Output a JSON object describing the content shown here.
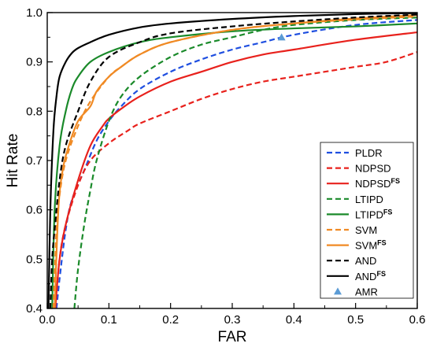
{
  "chart_data": {
    "type": "line",
    "title": "",
    "xlabel": "FAR",
    "ylabel": "Hit Rate",
    "xlim": [
      0.0,
      0.6
    ],
    "ylim": [
      0.4,
      1.0
    ],
    "x_ticks": [
      "0.0",
      "0.1",
      "0.2",
      "0.3",
      "0.4",
      "0.5",
      "0.6"
    ],
    "y_ticks": [
      "0.4",
      "0.5",
      "0.6",
      "0.7",
      "0.8",
      "0.9",
      "1.0"
    ],
    "grid": false,
    "legend_position": "bottom-right",
    "series": [
      {
        "name": "PLDR",
        "base": "PLDR",
        "sup": "",
        "color": "#1f4fe0",
        "style": "dashed",
        "x": [
          0.015,
          0.02,
          0.03,
          0.04,
          0.06,
          0.08,
          0.1,
          0.12,
          0.15,
          0.2,
          0.25,
          0.3,
          0.35,
          0.4,
          0.5,
          0.6
        ],
        "y": [
          0.4,
          0.46,
          0.56,
          0.62,
          0.68,
          0.74,
          0.78,
          0.81,
          0.845,
          0.88,
          0.905,
          0.925,
          0.94,
          0.955,
          0.975,
          0.985
        ]
      },
      {
        "name": "NDPSD",
        "base": "NDPSD",
        "sup": "",
        "color": "#e8211c",
        "style": "dashed",
        "x": [
          0.013,
          0.02,
          0.03,
          0.05,
          0.07,
          0.1,
          0.13,
          0.15,
          0.2,
          0.25,
          0.3,
          0.35,
          0.4,
          0.45,
          0.5,
          0.55,
          0.6
        ],
        "y": [
          0.4,
          0.5,
          0.57,
          0.65,
          0.7,
          0.735,
          0.76,
          0.775,
          0.8,
          0.825,
          0.845,
          0.86,
          0.87,
          0.88,
          0.89,
          0.9,
          0.92
        ]
      },
      {
        "name": "NDPSD FS",
        "base": "NDPSD",
        "sup": "FS",
        "color": "#e8211c",
        "style": "solid",
        "x": [
          0.013,
          0.02,
          0.03,
          0.05,
          0.07,
          0.09,
          0.1,
          0.12,
          0.15,
          0.2,
          0.25,
          0.3,
          0.35,
          0.4,
          0.5,
          0.6
        ],
        "y": [
          0.4,
          0.5,
          0.57,
          0.66,
          0.73,
          0.77,
          0.785,
          0.805,
          0.83,
          0.86,
          0.88,
          0.9,
          0.915,
          0.925,
          0.945,
          0.96
        ]
      },
      {
        "name": "LTIPD",
        "base": "LTIPD",
        "sup": "",
        "color": "#1a8a2a",
        "style": "dashed",
        "x": [
          0.044,
          0.05,
          0.06,
          0.07,
          0.08,
          0.1,
          0.12,
          0.15,
          0.2,
          0.25,
          0.3,
          0.35,
          0.4,
          0.5,
          0.6
        ],
        "y": [
          0.4,
          0.48,
          0.57,
          0.64,
          0.7,
          0.78,
          0.83,
          0.87,
          0.91,
          0.935,
          0.95,
          0.965,
          0.975,
          0.985,
          0.99
        ]
      },
      {
        "name": "LTIPD FS",
        "base": "LTIPD",
        "sup": "FS",
        "color": "#1a8a2a",
        "style": "solid",
        "x": [
          0.008,
          0.012,
          0.02,
          0.03,
          0.04,
          0.05,
          0.07,
          0.1,
          0.15,
          0.2,
          0.3,
          0.4,
          0.5,
          0.6
        ],
        "y": [
          0.4,
          0.6,
          0.73,
          0.8,
          0.845,
          0.87,
          0.9,
          0.92,
          0.94,
          0.95,
          0.962,
          0.968,
          0.972,
          0.978
        ]
      },
      {
        "name": "SVM",
        "base": "SVM",
        "sup": "",
        "color": "#f08a24",
        "style": "dashed",
        "x": [
          0.01,
          0.015,
          0.02,
          0.03,
          0.05,
          0.07,
          0.1,
          0.12,
          0.15,
          0.2,
          0.3,
          0.4,
          0.5,
          0.6
        ],
        "y": [
          0.4,
          0.56,
          0.63,
          0.7,
          0.77,
          0.82,
          0.87,
          0.89,
          0.915,
          0.94,
          0.965,
          0.978,
          0.986,
          0.992
        ]
      },
      {
        "name": "SVM FS",
        "base": "SVM",
        "sup": "FS",
        "color": "#f08a24",
        "style": "solid",
        "x": [
          0.012,
          0.018,
          0.025,
          0.035,
          0.05,
          0.07,
          0.08,
          0.1,
          0.12,
          0.15,
          0.2,
          0.3,
          0.4,
          0.5,
          0.6
        ],
        "y": [
          0.4,
          0.6,
          0.68,
          0.73,
          0.78,
          0.81,
          0.84,
          0.87,
          0.89,
          0.915,
          0.94,
          0.965,
          0.978,
          0.988,
          0.995
        ]
      },
      {
        "name": "AND",
        "base": "AND",
        "sup": "",
        "color": "#000000",
        "style": "dashed",
        "x": [
          0.005,
          0.008,
          0.012,
          0.02,
          0.03,
          0.05,
          0.07,
          0.1,
          0.15,
          0.2,
          0.3,
          0.4,
          0.5,
          0.6
        ],
        "y": [
          0.4,
          0.5,
          0.56,
          0.66,
          0.73,
          0.8,
          0.86,
          0.91,
          0.94,
          0.958,
          0.972,
          0.982,
          0.99,
          0.996
        ]
      },
      {
        "name": "AND FS",
        "base": "AND",
        "sup": "FS",
        "color": "#000000",
        "style": "solid",
        "x": [
          0.002,
          0.005,
          0.01,
          0.015,
          0.02,
          0.03,
          0.04,
          0.05,
          0.07,
          0.1,
          0.15,
          0.2,
          0.3,
          0.4,
          0.5,
          0.6
        ],
        "y": [
          0.4,
          0.6,
          0.76,
          0.83,
          0.87,
          0.9,
          0.918,
          0.928,
          0.94,
          0.955,
          0.97,
          0.978,
          0.987,
          0.993,
          0.997,
          0.999
        ]
      }
    ],
    "markers": [
      {
        "name": "AMR",
        "color": "#5b9bd5",
        "shape": "triangle",
        "x": [
          0.38
        ],
        "y": [
          0.95
        ]
      }
    ]
  }
}
